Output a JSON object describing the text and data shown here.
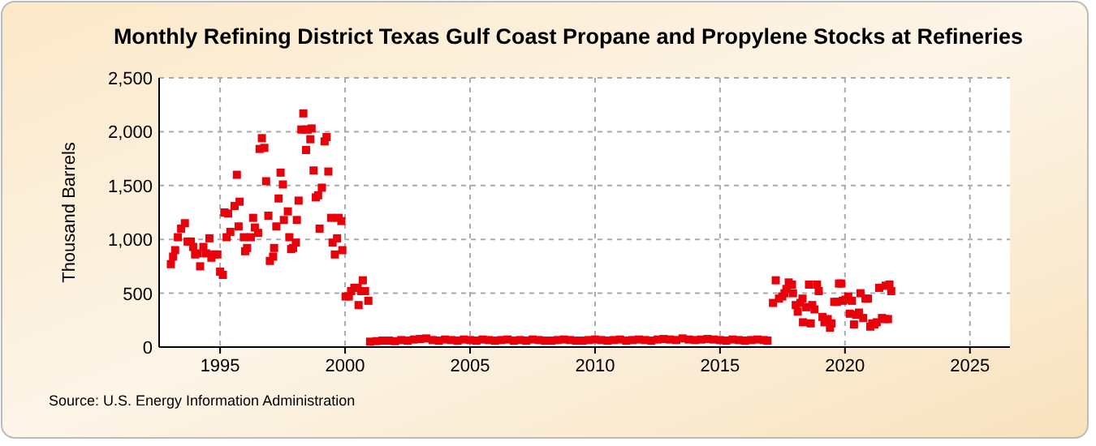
{
  "chart_data": {
    "type": "scatter",
    "title": "Monthly Refining District Texas Gulf Coast Propane and Propylene Stocks at Refineries",
    "ylabel": "Thousand Barrels",
    "annotations": [
      "Source: U.S. Energy Information Administration"
    ],
    "xlim": [
      1992.56,
      2026.6
    ],
    "xticks": [
      1995,
      2000,
      2005,
      2010,
      2015,
      2020,
      2025
    ],
    "ylim": [
      0,
      2500
    ],
    "yticks": [
      0,
      {
        "value": 500,
        "label": "500"
      },
      {
        "value": 1000,
        "label": "1,000"
      },
      {
        "value": 1500,
        "label": "1,500"
      },
      {
        "value": 2000,
        "label": "2,000"
      },
      {
        "value": 2500,
        "label": "2,500"
      }
    ],
    "grid": true,
    "marker": "square",
    "series": [
      {
        "color": "#e8000b",
        "x": [
          1993.03,
          1993.12,
          1993.2,
          1993.31,
          1993.44,
          1993.59,
          1993.7,
          1993.83,
          1993.92,
          1994.0,
          1994.11,
          1994.2,
          1994.33,
          1994.44,
          1994.57,
          1994.65,
          1994.76,
          1994.89,
          1995.0,
          1995.11,
          1995.17,
          1995.26,
          1995.32,
          1995.41,
          1995.58,
          1995.67,
          1995.74,
          1995.78,
          1995.95,
          1996.0,
          1996.08,
          1996.23,
          1996.32,
          1996.39,
          1996.52,
          1996.58,
          1996.67,
          1996.77,
          1996.84,
          1996.93,
          1996.99,
          1997.12,
          1997.16,
          1997.25,
          1997.34,
          1997.42,
          1997.51,
          1997.55,
          1997.71,
          1997.77,
          1997.84,
          1997.92,
          1998.03,
          1998.07,
          1998.14,
          1998.25,
          1998.33,
          1998.4,
          1998.44,
          1998.51,
          1998.61,
          1998.66,
          1998.74,
          1998.83,
          1998.92,
          1998.98,
          1999.07,
          1999.18,
          1999.26,
          1999.33,
          1999.44,
          1999.5,
          1999.59,
          1999.68,
          1999.74,
          1999.85,
          1999.89,
          2000.02,
          2000.15,
          2000.24,
          2000.37,
          2000.5,
          2000.54,
          2000.65,
          2000.71,
          2000.8,
          2000.93,
          2001.0,
          2001.25,
          2001.5,
          2001.75,
          2002.0,
          2002.25,
          2002.5,
          2002.75,
          2003.0,
          2003.25,
          2003.5,
          2003.75,
          2004.0,
          2004.25,
          2004.5,
          2004.75,
          2005.0,
          2005.25,
          2005.5,
          2005.75,
          2006.0,
          2006.25,
          2006.5,
          2006.75,
          2007.0,
          2007.25,
          2007.5,
          2007.75,
          2008.0,
          2008.25,
          2008.5,
          2008.75,
          2009.0,
          2009.25,
          2009.5,
          2009.75,
          2010.0,
          2010.25,
          2010.5,
          2010.75,
          2011.0,
          2011.25,
          2011.5,
          2011.75,
          2012.0,
          2012.25,
          2012.5,
          2012.75,
          2013.0,
          2013.25,
          2013.5,
          2013.75,
          2014.0,
          2014.25,
          2014.5,
          2014.75,
          2015.0,
          2015.25,
          2015.5,
          2015.75,
          2016.0,
          2016.25,
          2016.5,
          2016.75,
          2016.9,
          2017.12,
          2017.23,
          2017.36,
          2017.49,
          2017.58,
          2017.66,
          2017.75,
          2017.88,
          2017.92,
          2018.03,
          2018.11,
          2018.22,
          2018.3,
          2018.32,
          2018.45,
          2018.56,
          2018.63,
          2018.69,
          2018.78,
          2018.88,
          2018.95,
          2019.1,
          2019.18,
          2019.31,
          2019.4,
          2019.46,
          2019.57,
          2019.68,
          2019.76,
          2019.85,
          2019.91,
          2020.02,
          2020.13,
          2020.19,
          2020.28,
          2020.36,
          2020.45,
          2020.56,
          2020.62,
          2020.73,
          2020.82,
          2020.92,
          2021.01,
          2021.09,
          2021.18,
          2021.27,
          2021.37,
          2021.48,
          2021.59,
          2021.63,
          2021.72,
          2021.78,
          2021.85
        ],
        "values": [
          770,
          840,
          900,
          1020,
          1100,
          1150,
          980,
          980,
          930,
          860,
          870,
          750,
          930,
          870,
          1010,
          830,
          860,
          860,
          700,
          670,
          1250,
          1020,
          1240,
          1070,
          1310,
          1600,
          1120,
          1350,
          1020,
          890,
          920,
          1020,
          1200,
          1110,
          1060,
          1840,
          1940,
          1850,
          1540,
          1220,
          800,
          840,
          920,
          1120,
          1380,
          1620,
          1510,
          1180,
          1260,
          1020,
          910,
          920,
          970,
          1180,
          1360,
          2020,
          2170,
          2020,
          1830,
          2020,
          1930,
          2030,
          1640,
          1390,
          1410,
          1100,
          1480,
          1910,
          1950,
          1630,
          1200,
          970,
          860,
          1010,
          1200,
          1170,
          900,
          470,
          470,
          520,
          550,
          550,
          390,
          520,
          620,
          520,
          430,
          50,
          55,
          60,
          60,
          55,
          65,
          60,
          70,
          75,
          80,
          65,
          60,
          70,
          65,
          60,
          70,
          65,
          60,
          70,
          65,
          60,
          65,
          70,
          60,
          65,
          60,
          70,
          65,
          60,
          60,
          65,
          70,
          65,
          60,
          60,
          65,
          70,
          65,
          60,
          65,
          70,
          60,
          65,
          70,
          65,
          60,
          70,
          75,
          70,
          65,
          80,
          70,
          65,
          70,
          75,
          70,
          65,
          60,
          70,
          65,
          60,
          65,
          70,
          65,
          60,
          410,
          620,
          450,
          470,
          500,
          540,
          600,
          580,
          500,
          390,
          330,
          410,
          450,
          230,
          370,
          580,
          220,
          390,
          350,
          580,
          520,
          280,
          230,
          260,
          180,
          220,
          420,
          420,
          590,
          590,
          430,
          440,
          470,
          310,
          430,
          210,
          300,
          320,
          500,
          270,
          450,
          450,
          190,
          220,
          210,
          230,
          550,
          270,
          260,
          570,
          260,
          580,
          520
        ]
      }
    ]
  }
}
